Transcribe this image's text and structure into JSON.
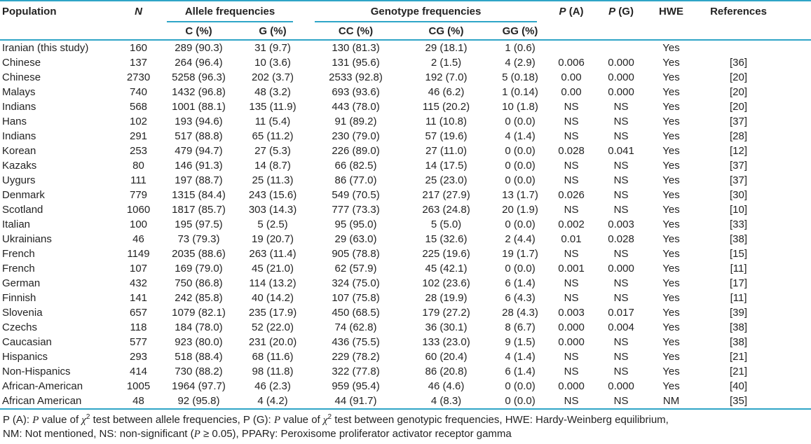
{
  "colors": {
    "accent": "#2fa5c7",
    "text": "#232323",
    "background": "#ffffff"
  },
  "table": {
    "columns": {
      "population": "Population",
      "n": "N",
      "allele_group": "Allele frequencies",
      "genotype_group": "Genotype frequencies",
      "c": "C (%)",
      "g": "G (%)",
      "cc": "CC (%)",
      "cg": "CG (%)",
      "gg": "GG (%)",
      "p_a": [
        {
          "t": "P",
          "i": true
        },
        {
          "t": " (A)"
        }
      ],
      "p_g": [
        {
          "t": "P",
          "i": true
        },
        {
          "t": " (G)"
        }
      ],
      "hwe": "HWE",
      "references": "References"
    },
    "col_keys": [
      "population",
      "n",
      "c",
      "g",
      "cc",
      "cg",
      "gg",
      "p_a",
      "p_g",
      "hwe",
      "references"
    ],
    "rows": [
      [
        "Iranian (this study)",
        "160",
        "289 (90.3)",
        "31 (9.7)",
        "130 (81.3)",
        "29 (18.1)",
        "1 (0.6)",
        "",
        "",
        "Yes",
        ""
      ],
      [
        "Chinese",
        "137",
        "264 (96.4)",
        "10 (3.6)",
        "131 (95.6)",
        "2 (1.5)",
        "4 (2.9)",
        "0.006",
        "0.000",
        "Yes",
        "[36]"
      ],
      [
        "Chinese",
        "2730",
        "5258 (96.3)",
        "202 (3.7)",
        "2533 (92.8)",
        "192 (7.0)",
        "5 (0.18)",
        "0.00",
        "0.000",
        "Yes",
        "[20]"
      ],
      [
        "Malays",
        "740",
        "1432 (96.8)",
        "48 (3.2)",
        "693 (93.6)",
        "46 (6.2)",
        "1 (0.14)",
        "0.00",
        "0.000",
        "Yes",
        "[20]"
      ],
      [
        "Indians",
        "568",
        "1001 (88.1)",
        "135 (11.9)",
        "443 (78.0)",
        "115 (20.2)",
        "10 (1.8)",
        "NS",
        "NS",
        "Yes",
        "[20]"
      ],
      [
        "Hans",
        "102",
        "193 (94.6)",
        "11 (5.4)",
        "91 (89.2)",
        "11 (10.8)",
        "0 (0.0)",
        "NS",
        "NS",
        "Yes",
        "[37]"
      ],
      [
        "Indians",
        "291",
        "517 (88.8)",
        "65 (11.2)",
        "230 (79.0)",
        "57 (19.6)",
        "4 (1.4)",
        "NS",
        "NS",
        "Yes",
        "[28]"
      ],
      [
        "Korean",
        "253",
        "479 (94.7)",
        "27 (5.3)",
        "226 (89.0)",
        "27 (11.0)",
        "0 (0.0)",
        "0.028",
        "0.041",
        "Yes",
        "[12]"
      ],
      [
        "Kazaks",
        "80",
        "146 (91.3)",
        "14 (8.7)",
        "66 (82.5)",
        "14 (17.5)",
        "0 (0.0)",
        "NS",
        "NS",
        "Yes",
        "[37]"
      ],
      [
        "Uygurs",
        "111",
        "197 (88.7)",
        "25 (11.3)",
        "86 (77.0)",
        "25 (23.0)",
        "0 (0.0)",
        "NS",
        "NS",
        "Yes",
        "[37]"
      ],
      [
        "Denmark",
        "779",
        "1315 (84.4)",
        "243 (15.6)",
        "549 (70.5)",
        "217 (27.9)",
        "13 (1.7)",
        "0.026",
        "NS",
        "Yes",
        "[30]"
      ],
      [
        "Scotland",
        "1060",
        "1817 (85.7)",
        "303 (14.3)",
        "777 (73.3)",
        "263 (24.8)",
        "20 (1.9)",
        "NS",
        "NS",
        "Yes",
        "[10]"
      ],
      [
        "Italian",
        "100",
        "195 (97.5)",
        "5 (2.5)",
        "95 (95.0)",
        "5 (5.0)",
        "0 (0.0)",
        "0.002",
        "0.003",
        "Yes",
        "[33]"
      ],
      [
        "Ukrainians",
        "46",
        "73 (79.3)",
        "19 (20.7)",
        "29 (63.0)",
        "15 (32.6)",
        "2 (4.4)",
        "0.01",
        "0.028",
        "Yes",
        "[38]"
      ],
      [
        "French",
        "1149",
        "2035 (88.6)",
        "263 (11.4)",
        "905 (78.8)",
        "225 (19.6)",
        "19 (1.7)",
        "NS",
        "NS",
        "Yes",
        "[15]"
      ],
      [
        "French",
        "107",
        "169 (79.0)",
        "45 (21.0)",
        "62 (57.9)",
        "45 (42.1)",
        "0 (0.0)",
        "0.001",
        "0.000",
        "Yes",
        "[11]"
      ],
      [
        "German",
        "432",
        "750 (86.8)",
        "114 (13.2)",
        "324 (75.0)",
        "102 (23.6)",
        "6 (1.4)",
        "NS",
        "NS",
        "Yes",
        "[17]"
      ],
      [
        "Finnish",
        "141",
        "242 (85.8)",
        "40 (14.2)",
        "107 (75.8)",
        "28 (19.9)",
        "6 (4.3)",
        "NS",
        "NS",
        "Yes",
        "[11]"
      ],
      [
        "Slovenia",
        "657",
        "1079 (82.1)",
        "235 (17.9)",
        "450 (68.5)",
        "179 (27.2)",
        "28 (4.3)",
        "0.003",
        "0.017",
        "Yes",
        "[39]"
      ],
      [
        "Czechs",
        "118",
        "184 (78.0)",
        "52 (22.0)",
        "74 (62.8)",
        "36 (30.1)",
        "8 (6.7)",
        "0.000",
        "0.004",
        "Yes",
        "[38]"
      ],
      [
        "Caucasian",
        "577",
        "923 (80.0)",
        "231 (20.0)",
        "436 (75.5)",
        "133 (23.0)",
        "9 (1.5)",
        "0.000",
        "NS",
        "Yes",
        "[38]"
      ],
      [
        "Hispanics",
        "293",
        "518 (88.4)",
        "68 (11.6)",
        "229 (78.2)",
        "60 (20.4)",
        "4 (1.4)",
        "NS",
        "NS",
        "Yes",
        "[21]"
      ],
      [
        "Non-Hispanics",
        "414",
        "730 (88.2)",
        "98 (11.8)",
        "322 (77.8)",
        "86 (20.8)",
        "6 (1.4)",
        "NS",
        "NS",
        "Yes",
        "[21]"
      ],
      [
        "African-American",
        "1005",
        "1964 (97.7)",
        "46 (2.3)",
        "959 (95.4)",
        "46 (4.6)",
        "0 (0.0)",
        "0.000",
        "0.000",
        "Yes",
        "[40]"
      ],
      [
        "African American",
        "48",
        "92 (95.8)",
        "4 (4.2)",
        "44 (91.7)",
        "4 (8.3)",
        "0 (0.0)",
        "NS",
        "NS",
        "NM",
        "[35]"
      ]
    ]
  },
  "footnote": {
    "line1": [
      {
        "t": "P (A): "
      },
      {
        "t": "P",
        "i": true
      },
      {
        "t": " value of "
      },
      {
        "t": "χ",
        "i": true
      },
      {
        "t": "2",
        "sup": true
      },
      {
        "t": " test between allele frequencies, P (G): "
      },
      {
        "t": "P",
        "i": true
      },
      {
        "t": " value of "
      },
      {
        "t": "χ",
        "i": true
      },
      {
        "t": "2",
        "sup": true
      },
      {
        "t": " test between genotypic frequencies, HWE: Hardy-Weinberg equilibrium,"
      }
    ],
    "line2": [
      {
        "t": "NM: Not mentioned, NS: non-significant ("
      },
      {
        "t": "P",
        "i": true
      },
      {
        "t": " ≥ 0.05), PPARγ: Peroxisome proliferator activator receptor gamma"
      }
    ]
  }
}
